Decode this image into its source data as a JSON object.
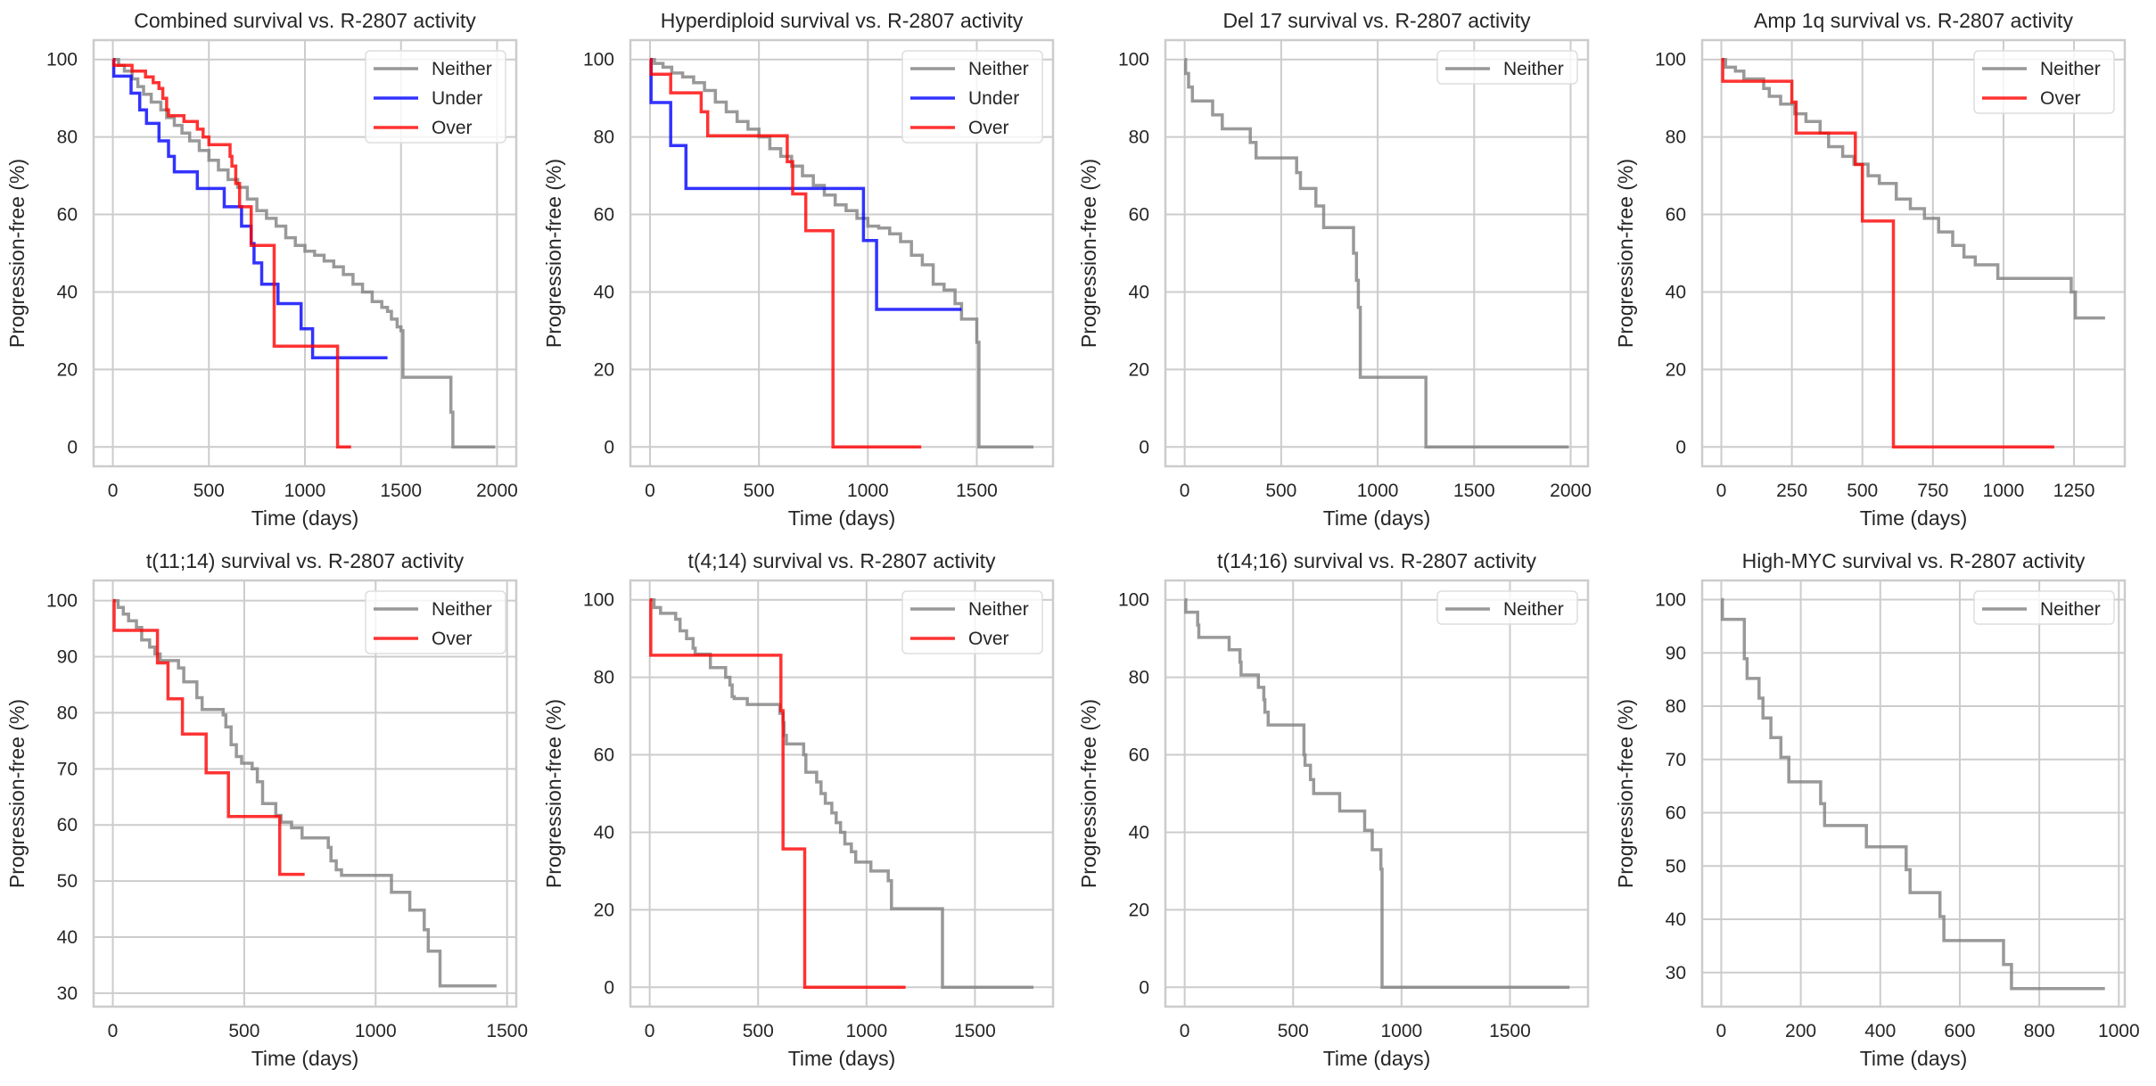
{
  "figure": {
    "colors": {
      "Neither": "#808080",
      "Under": "#0000ff",
      "Over": "#ff0000"
    }
  },
  "chart_data": [
    {
      "type": "line",
      "subtype": "kaplan-meier step",
      "title": "Combined survival vs. R-2807 activity",
      "xlabel": "Time (days)",
      "ylabel": "Progression-free (%)",
      "xlim": [
        -100,
        2100
      ],
      "ylim": [
        -5,
        105
      ],
      "xticks": [
        0,
        500,
        1000,
        1500,
        2000
      ],
      "yticks": [
        0,
        20,
        40,
        60,
        80,
        100
      ],
      "grid": true,
      "legend": "top-right",
      "series": [
        {
          "name": "Neither",
          "x": [
            0,
            30,
            60,
            100,
            130,
            160,
            200,
            250,
            280,
            320,
            360,
            400,
            450,
            500,
            550,
            600,
            650,
            700,
            750,
            800,
            850,
            900,
            950,
            1000,
            1050,
            1100,
            1150,
            1200,
            1250,
            1300,
            1350,
            1400,
            1430,
            1450,
            1480,
            1500,
            1510,
            1760,
            1770,
            1990
          ],
          "y": [
            100,
            98.5,
            97,
            95,
            93,
            91,
            89,
            87,
            85,
            83,
            81,
            79,
            76.5,
            74,
            71.5,
            69,
            67,
            64,
            61,
            59,
            57,
            54,
            52,
            50.5,
            49.5,
            48,
            46.5,
            44.5,
            42,
            40,
            37.5,
            36,
            35,
            33,
            31,
            30,
            18,
            9,
            0,
            0
          ]
        },
        {
          "name": "Under",
          "x": [
            0,
            5,
            95,
            140,
            175,
            240,
            290,
            320,
            440,
            580,
            670,
            720,
            735,
            775,
            860,
            980,
            1040,
            1430
          ],
          "y": [
            100,
            95.7,
            91.3,
            87,
            83.5,
            79,
            75,
            71,
            66.7,
            62,
            57,
            52.5,
            47.5,
            42,
            37,
            30.5,
            23,
            23
          ]
        },
        {
          "name": "Over",
          "x": [
            0,
            5,
            100,
            170,
            210,
            240,
            260,
            280,
            290,
            370,
            440,
            470,
            500,
            610,
            620,
            640,
            660,
            700,
            720,
            840,
            1170,
            1240
          ],
          "y": [
            100,
            98.5,
            97,
            95.5,
            94,
            92.5,
            90,
            87,
            85.5,
            84,
            82,
            80,
            78,
            75,
            72.5,
            68,
            62,
            62,
            52,
            26,
            0,
            0
          ]
        }
      ]
    },
    {
      "type": "line",
      "subtype": "kaplan-meier step",
      "title": "Hyperdiploid survival vs. R-2807 activity",
      "xlabel": "Time (days)",
      "ylabel": "Progression-free (%)",
      "xlim": [
        -90,
        1850
      ],
      "ylim": [
        -5,
        105
      ],
      "xticks": [
        0,
        500,
        1000,
        1500
      ],
      "yticks": [
        0,
        20,
        40,
        60,
        80,
        100
      ],
      "grid": true,
      "legend": "top-right",
      "series": [
        {
          "name": "Neither",
          "x": [
            0,
            20,
            60,
            100,
            150,
            200,
            250,
            300,
            350,
            400,
            450,
            500,
            550,
            600,
            650,
            700,
            750,
            800,
            850,
            900,
            950,
            1000,
            1050,
            1100,
            1150,
            1200,
            1250,
            1300,
            1350,
            1400,
            1430,
            1500,
            1510,
            1760
          ],
          "y": [
            100,
            99,
            98,
            96.5,
            95.5,
            94,
            92,
            89,
            86.5,
            84,
            82,
            80,
            77,
            75,
            72.5,
            70,
            67.5,
            65,
            62.5,
            61,
            59,
            57,
            56.5,
            55,
            53,
            49.5,
            47,
            42,
            40.5,
            37,
            33,
            27,
            0,
            0
          ]
        },
        {
          "name": "Under",
          "x": [
            0,
            5,
            95,
            165,
            980,
            1040,
            1430
          ],
          "y": [
            100,
            88.9,
            77.8,
            66.7,
            53.3,
            35.5,
            35.5
          ]
        },
        {
          "name": "Over",
          "x": [
            0,
            5,
            95,
            235,
            265,
            630,
            655,
            715,
            840,
            1245
          ],
          "y": [
            100,
            96.2,
            91.4,
            86.5,
            80.3,
            73.6,
            65.3,
            55.8,
            0,
            0
          ]
        }
      ]
    },
    {
      "type": "line",
      "subtype": "kaplan-meier step",
      "title": "Del 17 survival vs. R-2807 activity",
      "xlabel": "Time (days)",
      "ylabel": "Progression-free (%)",
      "xlim": [
        -100,
        2090
      ],
      "ylim": [
        -5,
        105
      ],
      "xticks": [
        0,
        500,
        1000,
        1500,
        2000
      ],
      "yticks": [
        0,
        20,
        40,
        60,
        80,
        100
      ],
      "grid": true,
      "legend": "top-right",
      "series": [
        {
          "name": "Neither",
          "x": [
            0,
            5,
            20,
            40,
            145,
            195,
            340,
            370,
            580,
            600,
            680,
            720,
            875,
            890,
            900,
            910,
            1250,
            1990
          ],
          "y": [
            100,
            96.4,
            92.9,
            89.3,
            85.7,
            82.1,
            78.6,
            74.6,
            70.8,
            66.7,
            62.2,
            56.6,
            50,
            43,
            36,
            18,
            0,
            0
          ]
        }
      ]
    },
    {
      "type": "line",
      "subtype": "kaplan-meier step",
      "title": "Amp 1q survival vs. R-2807 activity",
      "xlabel": "Time (days)",
      "ylabel": "Progression-free (%)",
      "xlim": [
        -68,
        1430
      ],
      "ylim": [
        -5,
        105
      ],
      "xticks": [
        0,
        250,
        500,
        750,
        1000,
        1250
      ],
      "yticks": [
        0,
        20,
        40,
        60,
        80,
        100
      ],
      "grid": true,
      "legend": "top-right",
      "series": [
        {
          "name": "Neither",
          "x": [
            0,
            15,
            50,
            80,
            150,
            170,
            210,
            260,
            300,
            350,
            380,
            430,
            470,
            520,
            560,
            620,
            670,
            720,
            770,
            820,
            860,
            900,
            980,
            1240,
            1255,
            1360
          ],
          "y": [
            100,
            98,
            97,
            95,
            92.5,
            90.5,
            88.5,
            86,
            84,
            81,
            77.5,
            75,
            73,
            70,
            68,
            64,
            61.5,
            59,
            55.5,
            52,
            49,
            47,
            43.5,
            40,
            33.3,
            33.3
          ]
        },
        {
          "name": "Over",
          "x": [
            0,
            5,
            250,
            265,
            475,
            500,
            610,
            1180
          ],
          "y": [
            100,
            94.4,
            89,
            81,
            72.9,
            58.3,
            0,
            0
          ]
        }
      ]
    },
    {
      "type": "line",
      "subtype": "kaplan-meier step",
      "title": "t(11;14) survival vs. R-2807 activity",
      "xlabel": "Time (days)",
      "ylabel": "Progression-free (%)",
      "xlim": [
        -73,
        1535
      ],
      "ylim": [
        27.6,
        103.6
      ],
      "xticks": [
        0,
        500,
        1000,
        1500
      ],
      "yticks": [
        30,
        40,
        50,
        60,
        70,
        80,
        90,
        100
      ],
      "grid": true,
      "legend": "top-right",
      "series": [
        {
          "name": "Neither",
          "x": [
            0,
            20,
            40,
            60,
            90,
            110,
            140,
            160,
            180,
            250,
            270,
            320,
            340,
            420,
            430,
            450,
            470,
            490,
            530,
            550,
            570,
            620,
            640,
            680,
            720,
            820,
            830,
            850,
            870,
            1060,
            1130,
            1185,
            1200,
            1245,
            1460
          ],
          "y": [
            100,
            98.8,
            97.6,
            96.4,
            95.2,
            93,
            91.7,
            90.5,
            89.3,
            88,
            85.5,
            82.7,
            80.6,
            79.6,
            77.5,
            74.3,
            72.2,
            71,
            70,
            67.7,
            63.8,
            61.7,
            60.5,
            59.5,
            57.7,
            56,
            53.6,
            52,
            51,
            48,
            44.8,
            41.3,
            37.5,
            31.3,
            31.3
          ]
        },
        {
          "name": "Over",
          "x": [
            0,
            5,
            170,
            210,
            265,
            355,
            440,
            635,
            730
          ],
          "y": [
            100,
            94.7,
            88.9,
            82.5,
            76.2,
            69.3,
            61.5,
            51.2,
            51.2
          ]
        }
      ]
    },
    {
      "type": "line",
      "subtype": "kaplan-meier step",
      "title": "t(4;14) survival vs. R-2807 activity",
      "xlabel": "Time (days)",
      "ylabel": "Progression-free (%)",
      "xlim": [
        -89,
        1860
      ],
      "ylim": [
        -5,
        105
      ],
      "xticks": [
        0,
        500,
        1000,
        1500
      ],
      "yticks": [
        0,
        20,
        40,
        60,
        80,
        100
      ],
      "grid": true,
      "legend": "top-right",
      "series": [
        {
          "name": "Neither",
          "x": [
            0,
            20,
            50,
            120,
            140,
            170,
            200,
            210,
            280,
            350,
            370,
            380,
            390,
            450,
            600,
            615,
            620,
            630,
            710,
            720,
            770,
            790,
            810,
            840,
            860,
            880,
            900,
            930,
            950,
            1020,
            1100,
            1115,
            1350,
            1770
          ],
          "y": [
            100,
            98,
            96.5,
            95,
            92,
            90,
            87.5,
            86,
            82.5,
            80,
            78,
            75,
            74.5,
            73,
            70.7,
            68.3,
            65,
            62.8,
            60,
            55.5,
            53,
            50,
            47.5,
            45,
            42.5,
            40,
            37,
            35,
            32.3,
            30,
            27.5,
            20.3,
            0,
            0
          ]
        },
        {
          "name": "Over",
          "x": [
            0,
            5,
            605,
            615,
            715,
            1180
          ],
          "y": [
            100,
            85.7,
            71.4,
            35.7,
            0,
            0
          ]
        }
      ]
    },
    {
      "type": "line",
      "subtype": "kaplan-meier step",
      "title": "t(14;16) survival vs. R-2807 activity",
      "xlabel": "Time (days)",
      "ylabel": "Progression-free (%)",
      "xlim": [
        -89,
        1860
      ],
      "ylim": [
        -5,
        105
      ],
      "xticks": [
        0,
        500,
        1000,
        1500
      ],
      "yticks": [
        0,
        20,
        40,
        60,
        80,
        100
      ],
      "grid": true,
      "legend": "top-right",
      "series": [
        {
          "name": "Neither",
          "x": [
            0,
            5,
            60,
            65,
            205,
            255,
            260,
            340,
            365,
            370,
            385,
            550,
            555,
            580,
            595,
            715,
            830,
            865,
            905,
            910,
            1775
          ],
          "y": [
            100,
            96.8,
            93.5,
            90.3,
            87.1,
            83.9,
            80.6,
            77.4,
            74.2,
            71,
            67.7,
            60,
            57.3,
            53.6,
            50,
            45.5,
            40.5,
            35.5,
            30.5,
            0,
            0
          ]
        }
      ]
    },
    {
      "type": "line",
      "subtype": "kaplan-meier step",
      "title": "High-MYC survival vs. R-2807 activity",
      "xlabel": "Time (days)",
      "ylabel": "Progression-free (%)",
      "xlim": [
        -48,
        1015
      ],
      "ylim": [
        23.6,
        103.6
      ],
      "xticks": [
        0,
        200,
        400,
        600,
        800,
        1000
      ],
      "yticks": [
        30,
        40,
        50,
        60,
        70,
        80,
        90,
        100
      ],
      "grid": true,
      "legend": "top-right",
      "series": [
        {
          "name": "Neither",
          "x": [
            0,
            3,
            58,
            65,
            95,
            105,
            125,
            150,
            170,
            250,
            260,
            365,
            465,
            475,
            550,
            560,
            710,
            730,
            965
          ],
          "y": [
            100,
            96.3,
            88.9,
            85.2,
            81.5,
            77.8,
            74.1,
            70.4,
            65.8,
            61.7,
            57.6,
            53.6,
            49.3,
            45,
            40.5,
            36,
            31.5,
            27,
            27
          ]
        }
      ]
    }
  ]
}
